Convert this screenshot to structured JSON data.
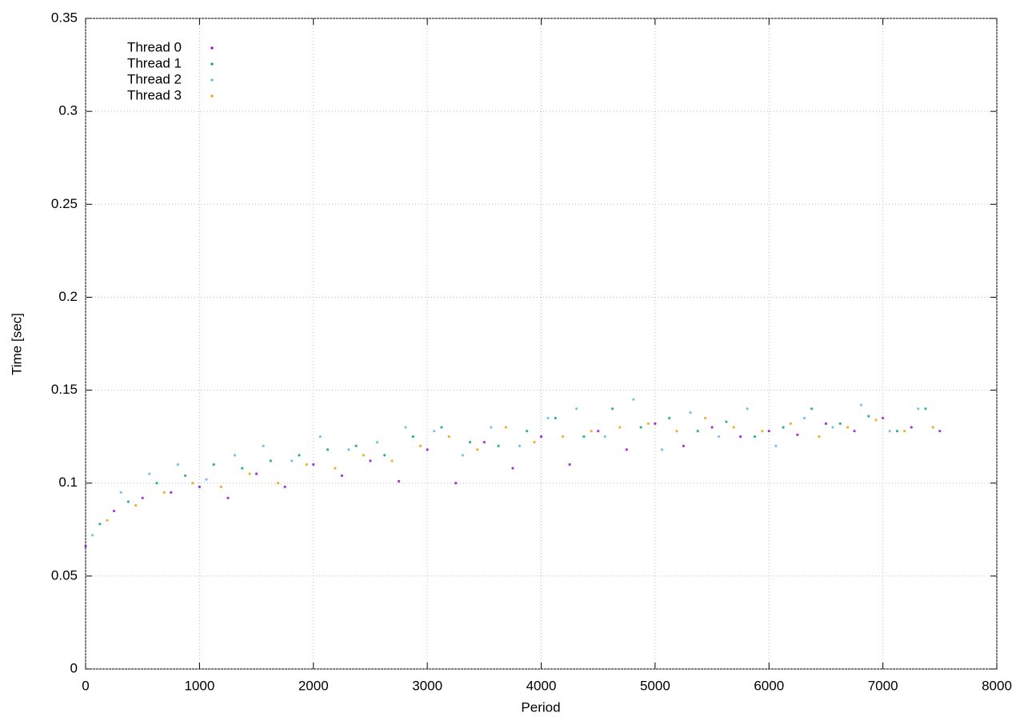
{
  "chart_data": {
    "type": "scatter",
    "x_label": "Period",
    "y_label": "Time [sec]",
    "xlim": [
      0,
      8000
    ],
    "xticks": [
      0,
      1000,
      2000,
      3000,
      4000,
      5000,
      6000,
      7000,
      8000
    ],
    "ylim": [
      0,
      0.35
    ],
    "yticks": [
      0,
      0.05,
      0.1,
      0.15,
      0.2,
      0.25,
      0.3,
      0.35
    ],
    "grid": true,
    "legend": "upper-left",
    "series": [
      {
        "name": "Thread 0",
        "color": "#9400d3",
        "x": [
          0,
          250,
          500,
          750,
          1000,
          1250,
          1500,
          1750,
          2000,
          2250,
          2500,
          2750,
          3000,
          3250,
          3500,
          3750,
          4000,
          4250,
          4500,
          4750,
          5000,
          5250,
          5500,
          5750,
          6000,
          6250,
          6500,
          6750,
          7000,
          7250,
          7500
        ],
        "values": [
          0.066,
          0.085,
          0.092,
          0.095,
          0.098,
          0.092,
          0.105,
          0.098,
          0.11,
          0.104,
          0.112,
          0.101,
          0.118,
          0.1,
          0.122,
          0.108,
          0.125,
          0.11,
          0.128,
          0.118,
          0.132,
          0.12,
          0.13,
          0.125,
          0.128,
          0.126,
          0.132,
          0.128,
          0.135,
          0.13,
          0.128
        ]
      },
      {
        "name": "Thread 1",
        "color": "#009e73",
        "x": [
          125,
          375,
          625,
          875,
          1125,
          1375,
          1625,
          1875,
          2125,
          2375,
          2625,
          2875,
          3125,
          3375,
          3625,
          3875,
          4125,
          4375,
          4625,
          4875,
          5125,
          5375,
          5625,
          5875,
          6125,
          6375,
          6625,
          6875,
          7125,
          7375
        ],
        "values": [
          0.078,
          0.09,
          0.1,
          0.104,
          0.11,
          0.108,
          0.112,
          0.115,
          0.118,
          0.12,
          0.115,
          0.125,
          0.13,
          0.122,
          0.12,
          0.128,
          0.135,
          0.125,
          0.14,
          0.13,
          0.135,
          0.128,
          0.133,
          0.125,
          0.13,
          0.14,
          0.132,
          0.136,
          0.128,
          0.14
        ]
      },
      {
        "name": "Thread 2",
        "color": "#56b4e9",
        "x": [
          60,
          310,
          560,
          810,
          1060,
          1310,
          1560,
          1810,
          2060,
          2310,
          2560,
          2810,
          3060,
          3310,
          3560,
          3810,
          4060,
          4310,
          4560,
          4810,
          5060,
          5310,
          5560,
          5810,
          6060,
          6310,
          6560,
          6810,
          7060,
          7310
        ],
        "values": [
          0.072,
          0.095,
          0.105,
          0.11,
          0.102,
          0.115,
          0.12,
          0.112,
          0.125,
          0.118,
          0.122,
          0.13,
          0.128,
          0.115,
          0.13,
          0.12,
          0.135,
          0.14,
          0.125,
          0.145,
          0.118,
          0.138,
          0.125,
          0.14,
          0.12,
          0.135,
          0.13,
          0.142,
          0.128,
          0.14
        ]
      },
      {
        "name": "Thread 3",
        "color": "#e69f00",
        "x": [
          190,
          440,
          690,
          940,
          1190,
          1440,
          1690,
          1940,
          2190,
          2440,
          2690,
          2940,
          3190,
          3440,
          3690,
          3940,
          4190,
          4440,
          4690,
          4940,
          5190,
          5440,
          5690,
          5940,
          6190,
          6440,
          6690,
          6940,
          7190,
          7440
        ],
        "values": [
          0.08,
          0.088,
          0.095,
          0.1,
          0.098,
          0.105,
          0.1,
          0.11,
          0.108,
          0.115,
          0.112,
          0.12,
          0.125,
          0.118,
          0.13,
          0.122,
          0.125,
          0.128,
          0.13,
          0.132,
          0.128,
          0.135,
          0.13,
          0.128,
          0.132,
          0.125,
          0.13,
          0.134,
          0.128,
          0.13
        ]
      }
    ]
  }
}
